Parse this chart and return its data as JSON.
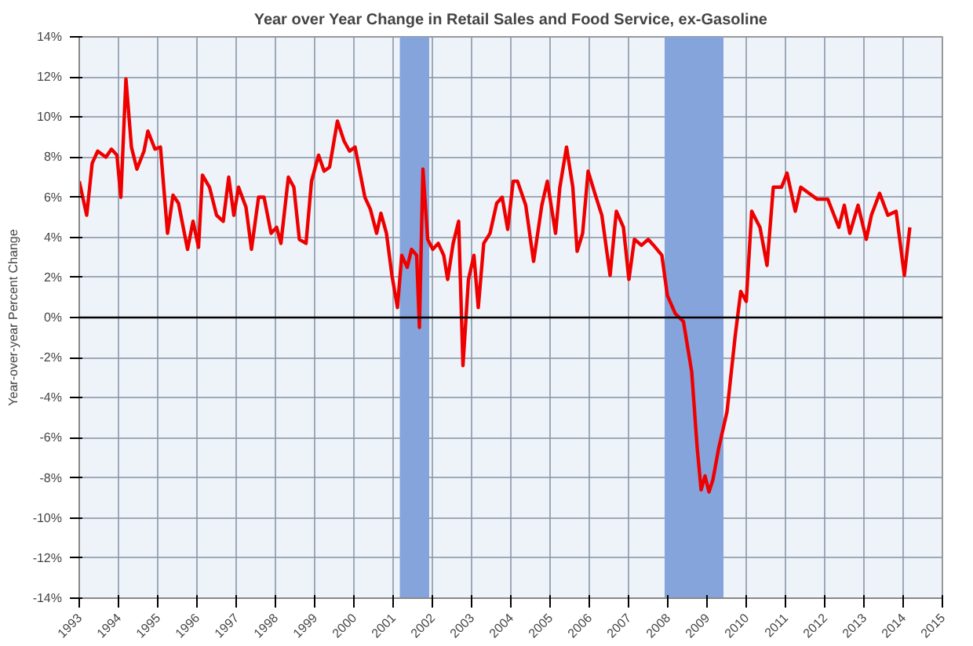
{
  "chart_data": {
    "type": "line",
    "title": "Year over Year Change in Retail Sales and Food Service, ex-Gasoline",
    "ylabel": "Year-over-year Percent Change",
    "xlim": [
      1993,
      2015
    ],
    "xticks": [
      1993,
      1994,
      1995,
      1996,
      1997,
      1998,
      1999,
      2000,
      2001,
      2002,
      2003,
      2004,
      2005,
      2006,
      2007,
      2008,
      2009,
      2010,
      2011,
      2012,
      2013,
      2014,
      2015
    ],
    "ylim": [
      -14,
      14
    ],
    "yticks": [
      {
        "value": -14,
        "label": "-14%"
      },
      {
        "value": -12,
        "label": "-12%"
      },
      {
        "value": -10,
        "label": "-10%"
      },
      {
        "value": -8,
        "label": "-8%"
      },
      {
        "value": -6,
        "label": "-6%"
      },
      {
        "value": -4,
        "label": "-4%"
      },
      {
        "value": -2,
        "label": "-2%"
      },
      {
        "value": 0,
        "label": "0%"
      },
      {
        "value": 2,
        "label": "2%"
      },
      {
        "value": 4,
        "label": "4%"
      },
      {
        "value": 6,
        "label": "6%"
      },
      {
        "value": 8,
        "label": "8%"
      },
      {
        "value": 10,
        "label": "10%"
      },
      {
        "value": 12,
        "label": "12%"
      },
      {
        "value": 14,
        "label": "14%"
      }
    ],
    "grid": true,
    "marker": "none",
    "line_style": "solid",
    "bands": [
      {
        "axis": "x",
        "from": 2001.17,
        "to": 2001.92,
        "color": "#86a4dc"
      },
      {
        "axis": "x",
        "from": 2007.92,
        "to": 2009.42,
        "color": "#86a4dc"
      }
    ],
    "ref_lines": [
      {
        "axis": "y",
        "value": 0,
        "color": "#000000"
      }
    ],
    "series": [
      {
        "color": "#ee0000",
        "x": [
          1993.0,
          1993.19,
          1993.33,
          1993.47,
          1993.68,
          1993.82,
          1993.96,
          1994.06,
          1994.19,
          1994.33,
          1994.47,
          1994.65,
          1994.75,
          1994.93,
          1995.07,
          1995.25,
          1995.39,
          1995.53,
          1995.76,
          1995.9,
          1996.04,
          1996.14,
          1996.32,
          1996.5,
          1996.67,
          1996.81,
          1996.94,
          1997.06,
          1997.25,
          1997.39,
          1997.57,
          1997.71,
          1997.89,
          1998.03,
          1998.14,
          1998.33,
          1998.47,
          1998.61,
          1998.78,
          1998.92,
          1999.1,
          1999.24,
          1999.38,
          1999.58,
          1999.75,
          1999.89,
          2000.03,
          2000.14,
          2000.28,
          2000.42,
          2000.58,
          2000.69,
          2000.83,
          2000.97,
          2001.11,
          2001.22,
          2001.36,
          2001.47,
          2001.6,
          2001.67,
          2001.76,
          2001.88,
          2002.01,
          2002.15,
          2002.29,
          2002.39,
          2002.53,
          2002.67,
          2002.78,
          2002.92,
          2003.06,
          2003.17,
          2003.31,
          2003.47,
          2003.64,
          2003.78,
          2003.92,
          2004.06,
          2004.17,
          2004.38,
          2004.58,
          2004.79,
          2004.93,
          2005.14,
          2005.25,
          2005.42,
          2005.58,
          2005.69,
          2005.83,
          2005.97,
          2006.14,
          2006.32,
          2006.53,
          2006.69,
          2006.87,
          2007.01,
          2007.15,
          2007.33,
          2007.5,
          2007.64,
          2007.85,
          2007.99,
          2008.19,
          2008.4,
          2008.61,
          2008.75,
          2008.85,
          2008.95,
          2009.05,
          2009.15,
          2009.3,
          2009.51,
          2009.72,
          2009.86,
          2010.0,
          2010.14,
          2010.35,
          2010.53,
          2010.69,
          2010.9,
          2011.04,
          2011.25,
          2011.39,
          2011.6,
          2011.81,
          2012.08,
          2012.36,
          2012.5,
          2012.64,
          2012.85,
          2013.06,
          2013.19,
          2013.4,
          2013.61,
          2013.82,
          2014.03,
          2014.17
        ],
        "values": [
          6.8,
          5.1,
          7.7,
          8.3,
          8.0,
          8.4,
          8.1,
          6.0,
          11.9,
          8.5,
          7.4,
          8.3,
          9.3,
          8.4,
          8.5,
          4.2,
          6.1,
          5.7,
          3.4,
          4.8,
          3.5,
          7.1,
          6.5,
          5.1,
          4.8,
          7.0,
          5.1,
          6.5,
          5.5,
          3.4,
          6.0,
          6.0,
          4.2,
          4.5,
          3.7,
          7.0,
          6.5,
          3.9,
          3.7,
          6.8,
          8.1,
          7.3,
          7.5,
          9.8,
          8.8,
          8.3,
          8.5,
          7.4,
          6.0,
          5.4,
          4.2,
          5.2,
          4.2,
          2.1,
          0.5,
          3.1,
          2.5,
          3.4,
          3.1,
          -0.5,
          7.4,
          3.9,
          3.4,
          3.7,
          3.1,
          1.9,
          3.7,
          4.8,
          -2.4,
          1.9,
          3.1,
          0.5,
          3.7,
          4.2,
          5.7,
          6.0,
          4.4,
          6.8,
          6.8,
          5.6,
          2.8,
          5.6,
          6.8,
          4.2,
          6.5,
          8.5,
          6.5,
          3.3,
          4.2,
          7.3,
          6.2,
          5.1,
          2.1,
          5.3,
          4.5,
          1.9,
          3.9,
          3.6,
          3.9,
          3.6,
          3.1,
          1.1,
          0.2,
          -0.2,
          -2.7,
          -6.5,
          -8.6,
          -7.9,
          -8.7,
          -8.1,
          -6.5,
          -4.7,
          -0.9,
          1.3,
          0.8,
          5.3,
          4.5,
          2.6,
          6.5,
          6.5,
          7.2,
          5.3,
          6.5,
          6.2,
          5.9,
          5.9,
          4.5,
          5.6,
          4.2,
          5.6,
          3.9,
          5.1,
          6.2,
          5.1,
          5.3,
          2.1,
          4.5
        ]
      }
    ]
  }
}
